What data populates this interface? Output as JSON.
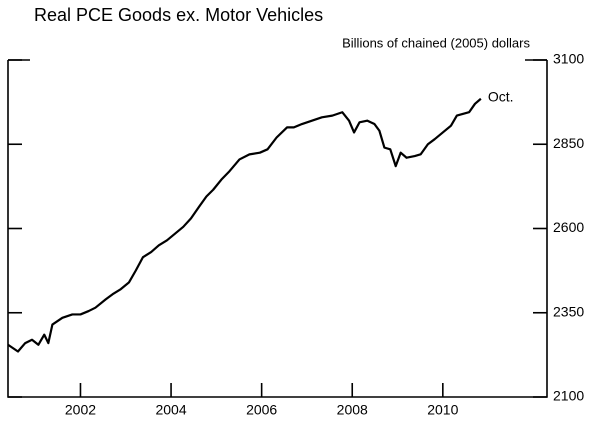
{
  "chart_data": {
    "type": "line",
    "title": "Real PCE Goods ex. Motor Vehicles",
    "y_label": "Billions of chained (2005) dollars",
    "annotation": "Oct.",
    "x": [
      2000.4,
      2000.62,
      2000.78,
      2000.93,
      2001.07,
      2001.2,
      2001.29,
      2001.38,
      2001.6,
      2001.82,
      2002.0,
      2002.18,
      2002.33,
      2002.56,
      2002.71,
      2002.89,
      2003.07,
      2003.22,
      2003.38,
      2003.56,
      2003.73,
      2003.91,
      2004.09,
      2004.27,
      2004.44,
      2004.62,
      2004.78,
      2004.93,
      2005.11,
      2005.29,
      2005.51,
      2005.73,
      2005.96,
      2006.13,
      2006.33,
      2006.56,
      2006.71,
      2006.89,
      2007.11,
      2007.33,
      2007.56,
      2007.78,
      2007.93,
      2008.04,
      2008.16,
      2008.33,
      2008.49,
      2008.6,
      2008.71,
      2008.84,
      2008.96,
      2009.07,
      2009.2,
      2009.38,
      2009.51,
      2009.67,
      2009.82,
      2010.0,
      2010.18,
      2010.31,
      2010.44,
      2010.58,
      2010.71,
      2010.84
    ],
    "series": [
      {
        "color": "#000000",
        "values": [
          2255,
          2235,
          2260,
          2270,
          2255,
          2285,
          2260,
          2315,
          2335,
          2345,
          2345,
          2355,
          2365,
          2390,
          2405,
          2420,
          2440,
          2475,
          2515,
          2530,
          2550,
          2565,
          2585,
          2605,
          2630,
          2665,
          2695,
          2715,
          2745,
          2770,
          2805,
          2820,
          2825,
          2835,
          2870,
          2900,
          2900,
          2910,
          2920,
          2930,
          2935,
          2945,
          2920,
          2885,
          2915,
          2920,
          2910,
          2890,
          2840,
          2835,
          2785,
          2825,
          2810,
          2815,
          2820,
          2850,
          2865,
          2885,
          2905,
          2935,
          2940,
          2945,
          2970,
          2985
        ]
      }
    ],
    "xlim": [
      2000.4,
      2012.3
    ],
    "xticks": [
      2002,
      2004,
      2006,
      2008,
      2010
    ],
    "ylim": [
      2100,
      3100
    ],
    "yticks": [
      2100,
      2350,
      2600,
      2850,
      3100
    ]
  }
}
